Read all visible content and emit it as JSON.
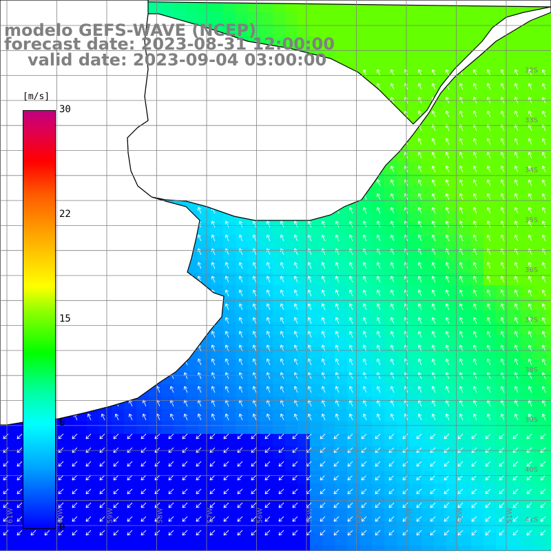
{
  "title": {
    "line1": "modelo GEFS-WAVE (NCEP)",
    "line2": "forecast date: 2023-08-31 12:00:00",
    "line3": "valid date: 2023-09-04 03:00:00"
  },
  "colorbar": {
    "unit": "[m/s]",
    "ticks": [
      "30",
      "22",
      "15",
      "8",
      "0"
    ],
    "range": [
      0,
      30
    ]
  },
  "lat_labels": [
    "32S",
    "33S",
    "34S",
    "35S",
    "36S",
    "37S",
    "38S",
    "39S",
    "40S",
    "41S"
  ],
  "lon_labels": [
    "61W",
    "60W",
    "59W",
    "58W",
    "57W",
    "56W",
    "55W",
    "54W",
    "53W",
    "52W",
    "51W"
  ],
  "colors": {
    "land": "#ffffff",
    "coast": "#000000",
    "grid": "#808080",
    "arrow": "#ffffff",
    "title": "#808080"
  }
}
